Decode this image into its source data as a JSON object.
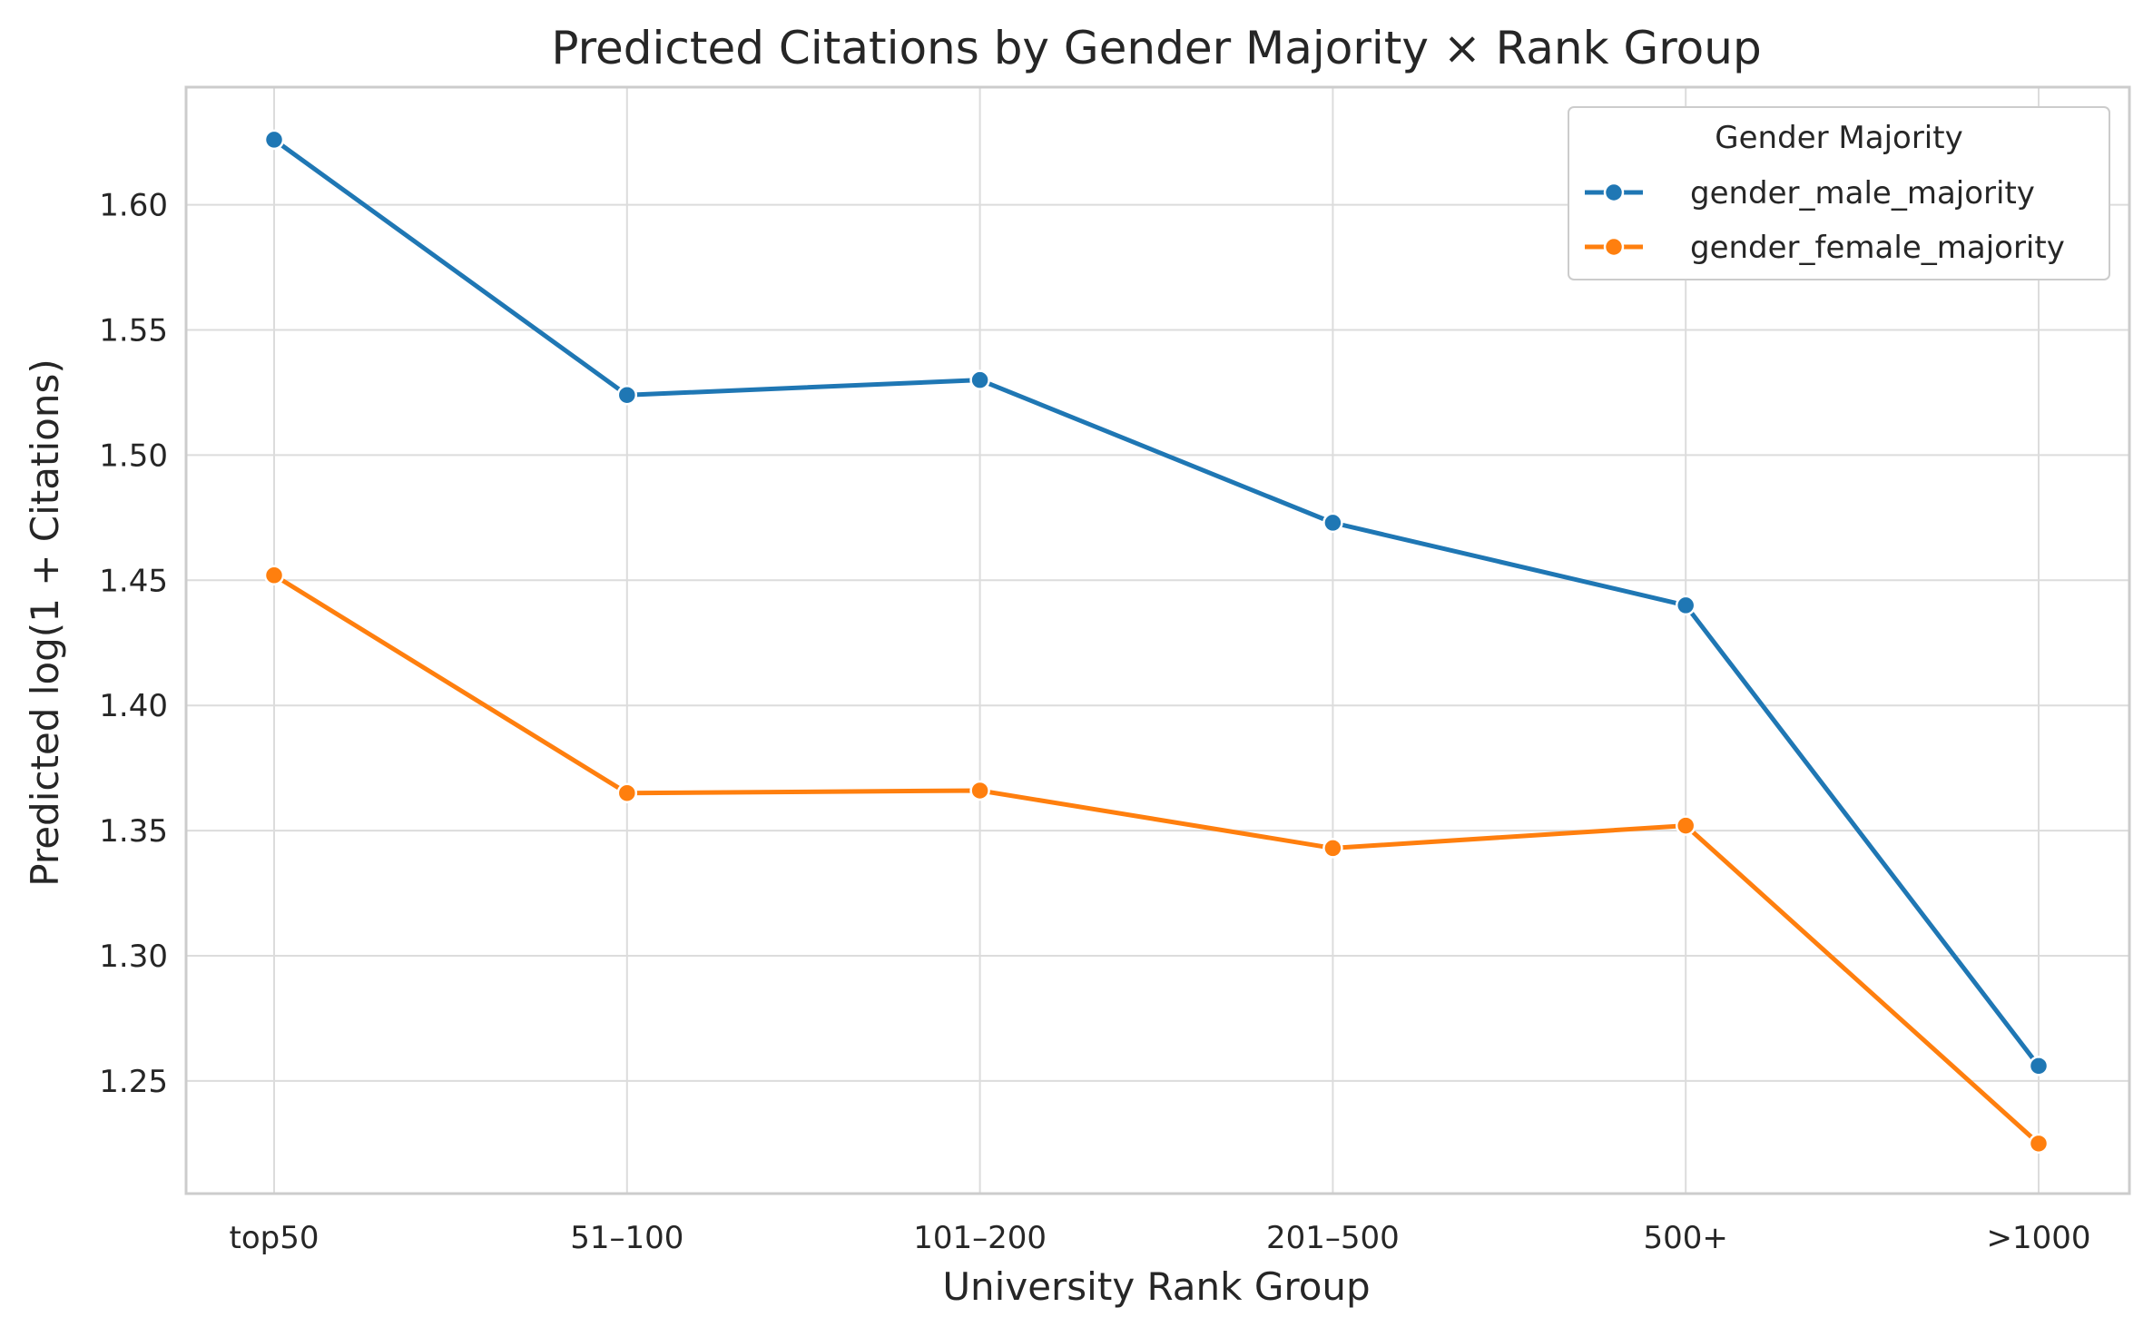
{
  "chart_data": {
    "type": "line",
    "title": "Predicted Citations by Gender Majority × Rank Group",
    "xlabel": "University Rank Group",
    "ylabel": "Predicted log(1 + Citations)",
    "categories": [
      "top50",
      "51–100",
      "101–200",
      "201–500",
      "500+",
      ">1000"
    ],
    "ylim": [
      1.205,
      1.647
    ],
    "yticks": [
      1.25,
      1.3,
      1.35,
      1.4,
      1.45,
      1.5,
      1.55,
      1.6
    ],
    "ytick_labels": [
      "1.25",
      "1.30",
      "1.35",
      "1.40",
      "1.45",
      "1.50",
      "1.55",
      "1.60"
    ],
    "grid": true,
    "legend": {
      "title": "Gender Majority",
      "placement": "top-right"
    },
    "series": [
      {
        "name": "gender_male_majority",
        "color": "#1f77b4",
        "values": [
          1.626,
          1.524,
          1.53,
          1.473,
          1.44,
          1.256
        ]
      },
      {
        "name": "gender_female_majority",
        "color": "#ff7f0e",
        "values": [
          1.452,
          1.365,
          1.366,
          1.343,
          1.352,
          1.225
        ]
      }
    ]
  }
}
